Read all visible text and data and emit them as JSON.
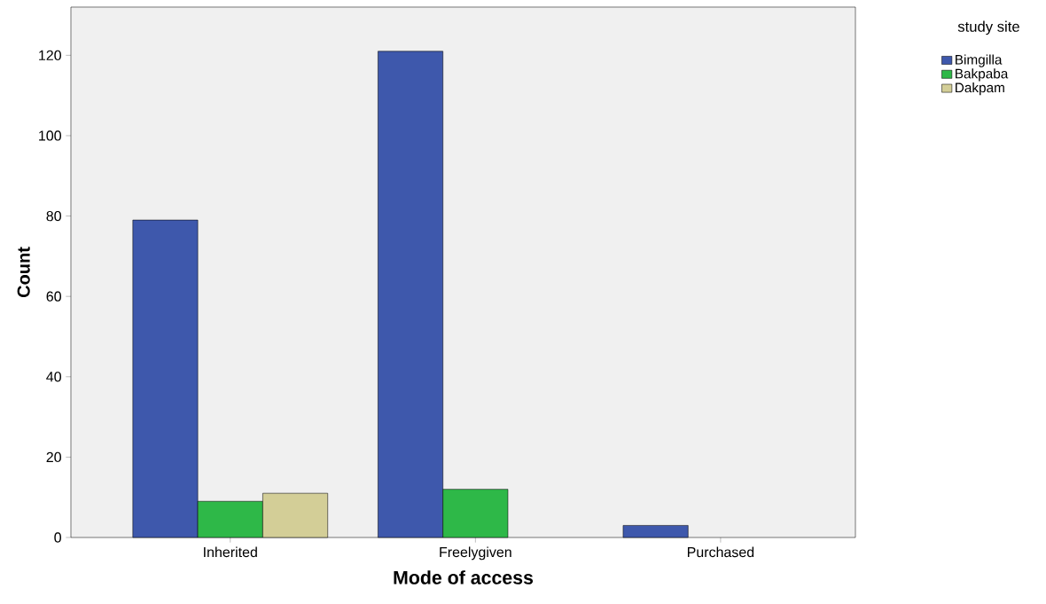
{
  "chart_data": {
    "type": "bar",
    "xlabel": "Mode of access",
    "ylabel": "Count",
    "legend_title": "study site",
    "categories": [
      "Inherited",
      "Freelygiven",
      "Purchased"
    ],
    "series": [
      {
        "name": "Bimgilla",
        "color": "#3e58ac",
        "values": [
          79,
          121,
          3
        ]
      },
      {
        "name": "Bakpaba",
        "color": "#2eb848",
        "values": [
          9,
          12,
          null
        ]
      },
      {
        "name": "Dakpam",
        "color": "#d3ce97",
        "values": [
          11,
          null,
          null
        ]
      }
    ],
    "ylim": [
      0,
      132
    ],
    "yticks": [
      0,
      20,
      40,
      60,
      80,
      100,
      120
    ],
    "grid": false,
    "legend": "top right"
  }
}
